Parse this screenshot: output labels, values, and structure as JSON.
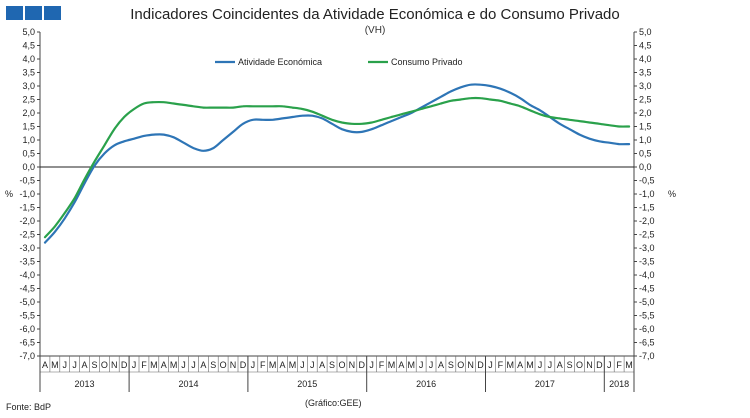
{
  "header": {
    "title": "Indicadores Coincidentes da Atividade Económica e do Consumo Privado",
    "subtitle": "(VH)",
    "logo_color": "#1f67b1"
  },
  "footer": {
    "source": "Fonte: BdP",
    "credit": "(Gráfico:GEE)"
  },
  "chart_data": {
    "type": "line",
    "title": "Indicadores Coincidentes da Atividade Económica e do Consumo Privado",
    "subtitle": "(VH)",
    "ylabel_left": "%",
    "ylabel_right": "%",
    "ylim": [
      -7.0,
      5.0
    ],
    "ytick_step": 0.5,
    "yticks": [
      "5,0",
      "4,5",
      "4,0",
      "3,5",
      "3,0",
      "2,5",
      "2,0",
      "1,5",
      "1,0",
      "0,5",
      "0,0",
      "-0,5",
      "-1,0",
      "-1,5",
      "-2,0",
      "-2,5",
      "-3,0",
      "-3,5",
      "-4,0",
      "-4,5",
      "-5,0",
      "-5,5",
      "-6,0",
      "-6,5",
      "-7,0"
    ],
    "legend_position": "top-center",
    "grid": false,
    "x": [
      "2013-04",
      "2013-05",
      "2013-06",
      "2013-07",
      "2013-08",
      "2013-09",
      "2013-10",
      "2013-11",
      "2013-12",
      "2014-01",
      "2014-02",
      "2014-03",
      "2014-04",
      "2014-05",
      "2014-06",
      "2014-07",
      "2014-08",
      "2014-09",
      "2014-10",
      "2014-11",
      "2014-12",
      "2015-01",
      "2015-02",
      "2015-03",
      "2015-04",
      "2015-05",
      "2015-06",
      "2015-07",
      "2015-08",
      "2015-09",
      "2015-10",
      "2015-11",
      "2015-12",
      "2016-01",
      "2016-02",
      "2016-03",
      "2016-04",
      "2016-05",
      "2016-06",
      "2016-07",
      "2016-08",
      "2016-09",
      "2016-10",
      "2016-11",
      "2016-12",
      "2017-01",
      "2017-02",
      "2017-03",
      "2017-04",
      "2017-05",
      "2017-06",
      "2017-07",
      "2017-08",
      "2017-09",
      "2017-10",
      "2017-11",
      "2017-12",
      "2018-01",
      "2018-02",
      "2018-03"
    ],
    "month_labels": [
      "A",
      "M",
      "J",
      "J",
      "A",
      "S",
      "O",
      "N",
      "D",
      "J",
      "F",
      "M",
      "A",
      "M",
      "J",
      "J",
      "A",
      "S",
      "O",
      "N",
      "D",
      "J",
      "F",
      "M",
      "A",
      "M",
      "J",
      "J",
      "A",
      "S",
      "O",
      "N",
      "D",
      "J",
      "F",
      "M",
      "A",
      "M",
      "J",
      "J",
      "A",
      "S",
      "O",
      "N",
      "D",
      "J",
      "F",
      "M",
      "A",
      "M",
      "J",
      "J",
      "A",
      "S",
      "O",
      "N",
      "D",
      "J",
      "F",
      "M"
    ],
    "year_labels": [
      {
        "label": "2013",
        "start": 0,
        "end": 8
      },
      {
        "label": "2014",
        "start": 9,
        "end": 20
      },
      {
        "label": "2015",
        "start": 21,
        "end": 32
      },
      {
        "label": "2016",
        "start": 33,
        "end": 44
      },
      {
        "label": "2017",
        "start": 45,
        "end": 56
      },
      {
        "label": "2018",
        "start": 57,
        "end": 59
      }
    ],
    "series": [
      {
        "name": "Atividade Económica",
        "color": "#2e75b6",
        "values": [
          -2.8,
          -2.4,
          -1.9,
          -1.3,
          -0.6,
          0.05,
          0.5,
          0.8,
          0.95,
          1.05,
          1.15,
          1.2,
          1.2,
          1.1,
          0.9,
          0.7,
          0.6,
          0.7,
          1.0,
          1.3,
          1.6,
          1.75,
          1.75,
          1.75,
          1.8,
          1.85,
          1.9,
          1.9,
          1.8,
          1.6,
          1.4,
          1.3,
          1.3,
          1.4,
          1.55,
          1.7,
          1.85,
          2.0,
          2.2,
          2.4,
          2.6,
          2.8,
          2.95,
          3.05,
          3.05,
          3.0,
          2.9,
          2.75,
          2.55,
          2.3,
          2.1,
          1.85,
          1.6,
          1.4,
          1.2,
          1.05,
          0.95,
          0.9,
          0.85,
          0.85
        ]
      },
      {
        "name": "Consumo Privado",
        "color": "#2aa14b",
        "values": [
          -2.6,
          -2.2,
          -1.7,
          -1.15,
          -0.45,
          0.2,
          0.8,
          1.4,
          1.85,
          2.15,
          2.35,
          2.4,
          2.4,
          2.35,
          2.3,
          2.25,
          2.2,
          2.2,
          2.2,
          2.2,
          2.25,
          2.25,
          2.25,
          2.25,
          2.25,
          2.2,
          2.15,
          2.05,
          1.9,
          1.75,
          1.65,
          1.6,
          1.6,
          1.65,
          1.75,
          1.85,
          1.95,
          2.05,
          2.15,
          2.25,
          2.35,
          2.45,
          2.5,
          2.55,
          2.55,
          2.5,
          2.45,
          2.35,
          2.25,
          2.1,
          1.95,
          1.85,
          1.8,
          1.75,
          1.7,
          1.65,
          1.6,
          1.55,
          1.5,
          1.5
        ]
      }
    ]
  }
}
